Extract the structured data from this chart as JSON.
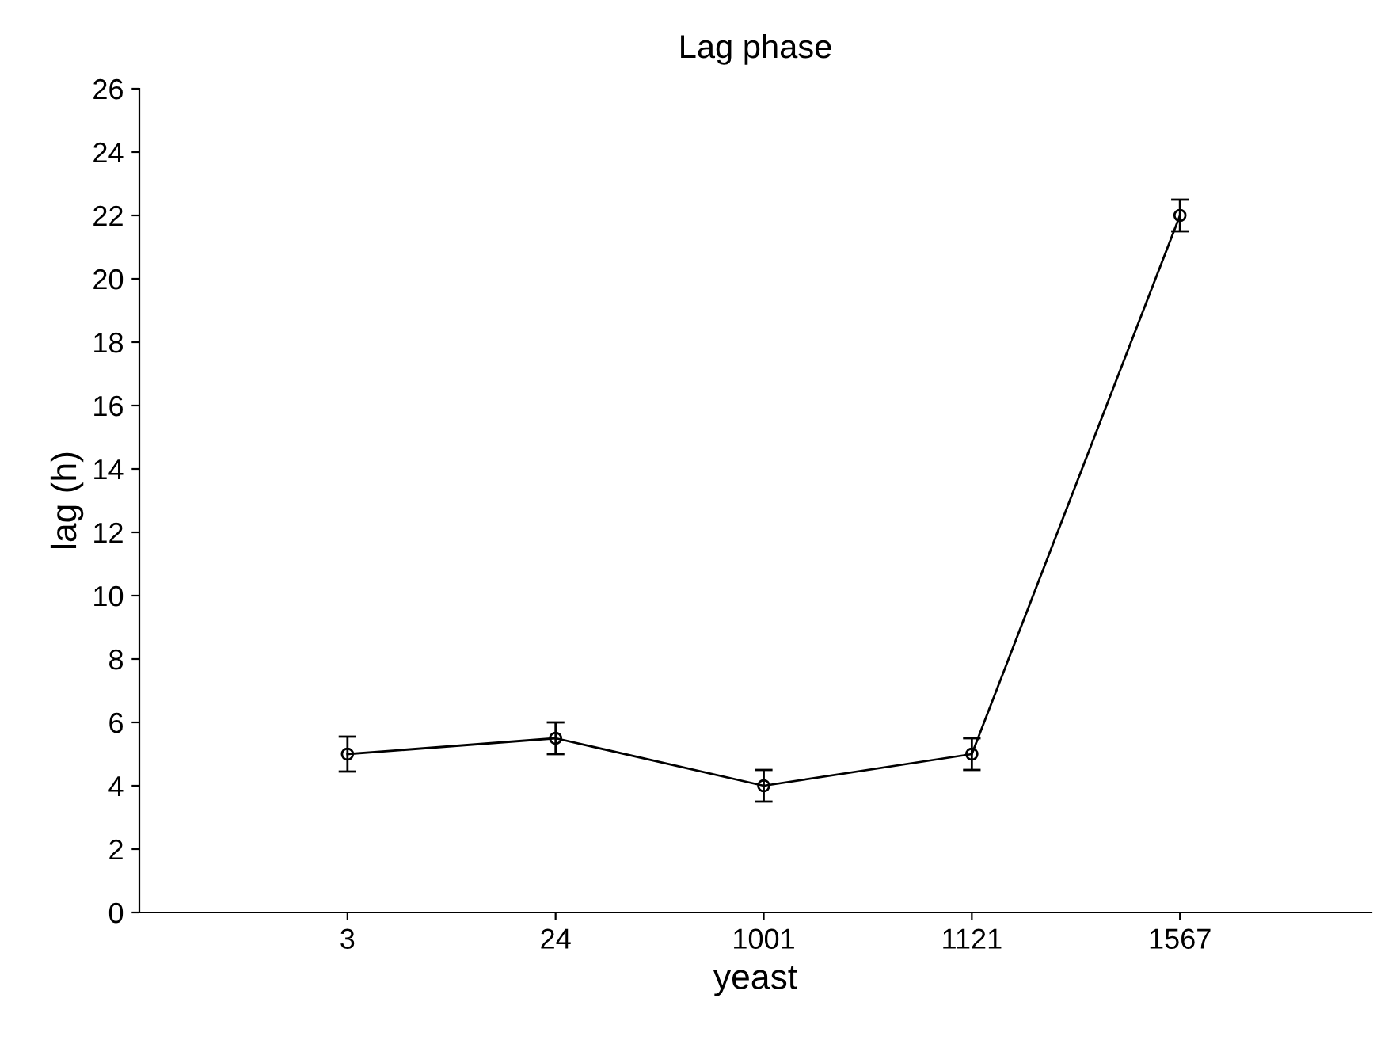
{
  "chart_data": {
    "type": "line",
    "title": "Lag phase",
    "xlabel": "yeast",
    "ylabel": "lag (h)",
    "categories": [
      "3",
      "24",
      "1001",
      "1121",
      "1567"
    ],
    "series": [
      {
        "color": "#000000",
        "values": [
          5.0,
          5.5,
          4.0,
          5.0,
          22.0
        ],
        "errors": [
          0.55,
          0.5,
          0.5,
          0.5,
          0.5
        ]
      }
    ],
    "ylim": [
      0,
      26
    ],
    "yticks": [
      0,
      2,
      4,
      6,
      8,
      10,
      12,
      14,
      16,
      18,
      20,
      22,
      24,
      26
    ],
    "grid": false,
    "legend": false,
    "marker": "circle",
    "line_style": "solid"
  }
}
